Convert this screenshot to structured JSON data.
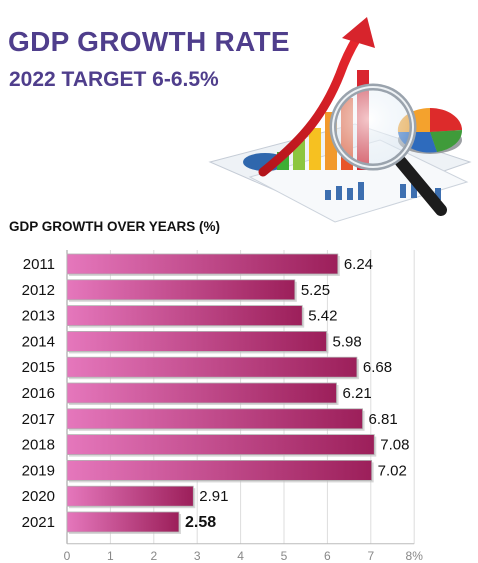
{
  "header": {
    "title": "GDP GROWTH RATE",
    "subtitle": "2022 TARGET 6-6.5%"
  },
  "colors": {
    "title": "#4f3e8c",
    "bar_light": "#e577bc",
    "bar_dark": "#9c1f5a",
    "bar_edge": "#b2b2b2"
  },
  "chart_data": {
    "type": "bar",
    "orientation": "horizontal",
    "title": "GDP GROWTH OVER YEARS (%)",
    "categories": [
      "2011",
      "2012",
      "2013",
      "2014",
      "2015",
      "2016",
      "2017",
      "2018",
      "2019",
      "2020",
      "2021"
    ],
    "values": [
      6.24,
      5.25,
      5.42,
      5.98,
      6.68,
      6.21,
      6.81,
      7.08,
      7.02,
      2.91,
      2.58
    ],
    "value_labels": [
      "6.24",
      "5.25",
      "5.42",
      "5.98",
      "6.68",
      "6.21",
      "6.81",
      "7.08",
      "7.02",
      "2.91",
      "2.58"
    ],
    "highlighted_index": 10,
    "xlim": [
      0,
      8
    ],
    "x_ticks": [
      "0",
      "1",
      "2",
      "3",
      "4",
      "5",
      "6",
      "7",
      "8%"
    ],
    "grid": true
  }
}
